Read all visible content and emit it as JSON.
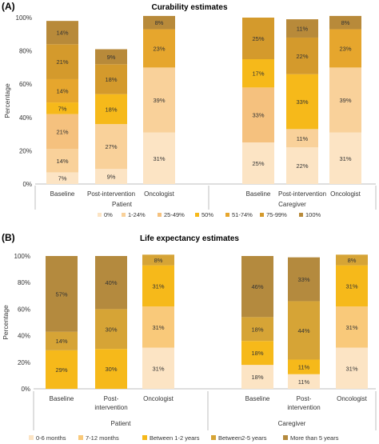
{
  "chart_data": [
    {
      "type": "bar",
      "stacked": true,
      "panel_label": "(A)",
      "title": "Curability estimates",
      "ylabel": "Percentage",
      "ylim": [
        0,
        100
      ],
      "yticks": [
        "0%",
        "20%",
        "40%",
        "60%",
        "80%",
        "100%"
      ],
      "groups": [
        "Patient",
        "Caregiver"
      ],
      "categories": [
        {
          "label": [
            "Baseline"
          ],
          "group": "Patient"
        },
        {
          "label": [
            "Post-intervention"
          ],
          "group": "Patient"
        },
        {
          "label": [
            "Oncologist"
          ],
          "group": "Patient"
        },
        {
          "label": [
            "Baseline"
          ],
          "group": "Caregiver"
        },
        {
          "label": [
            "Post-intervention"
          ],
          "group": "Caregiver"
        },
        {
          "label": [
            "Oncologist"
          ],
          "group": "Caregiver"
        }
      ],
      "series": [
        {
          "name": "0%",
          "color": "#fce4c4",
          "values": [
            7,
            9,
            31,
            25,
            22,
            31
          ],
          "labels": [
            "7%",
            "9%",
            "31%",
            "25%",
            "22%",
            "31%"
          ]
        },
        {
          "name": "1-24%",
          "color": "#f9d19a",
          "values": [
            14,
            27,
            39,
            0,
            11,
            39
          ],
          "labels": [
            "14%",
            "27%",
            "39%",
            "",
            "11%",
            "39%"
          ]
        },
        {
          "name": "25-49%",
          "color": "#f5c17e",
          "values": [
            21,
            0,
            0,
            33,
            0,
            0
          ],
          "labels": [
            "21%",
            "",
            "",
            "33%",
            "",
            ""
          ]
        },
        {
          "name": "50%",
          "color": "#f6b91a",
          "values": [
            7,
            18,
            0,
            17,
            33,
            0
          ],
          "labels": [
            "7%",
            "18%",
            "",
            "17%",
            "33%",
            ""
          ]
        },
        {
          "name": "51-74%",
          "color": "#e6a62d",
          "values": [
            14,
            0,
            23,
            0,
            0,
            23
          ],
          "labels": [
            "14%",
            "",
            "23%",
            "",
            "",
            "23%"
          ]
        },
        {
          "name": "75-99%",
          "color": "#d49a2c",
          "values": [
            21,
            18,
            0,
            25,
            22,
            0
          ],
          "labels": [
            "21%",
            "18%",
            "",
            "25%",
            "22%",
            ""
          ]
        },
        {
          "name": "100%",
          "color": "#b88a3a",
          "values": [
            14,
            9,
            8,
            0,
            11,
            8
          ],
          "labels": [
            "14%",
            "9%",
            "8%",
            "",
            "11%",
            "8%"
          ]
        }
      ],
      "legend": "bottom"
    },
    {
      "type": "bar",
      "stacked": true,
      "panel_label": "(B)",
      "title": "Life expectancy estimates",
      "ylabel": "Percentage",
      "ylim": [
        0,
        100
      ],
      "yticks": [
        "0%",
        "20%",
        "40%",
        "60%",
        "80%",
        "100%"
      ],
      "groups": [
        "Patient",
        "Caregiver"
      ],
      "categories": [
        {
          "label": [
            "Baseline"
          ],
          "group": "Patient"
        },
        {
          "label": [
            "Post-",
            "intervention"
          ],
          "group": "Patient"
        },
        {
          "label": [
            "Oncologist"
          ],
          "group": "Patient"
        },
        {
          "label": [
            "Baseline"
          ],
          "group": "Caregiver"
        },
        {
          "label": [
            "Post-",
            "intervention"
          ],
          "group": "Caregiver"
        },
        {
          "label": [
            "Oncologist"
          ],
          "group": "Caregiver"
        }
      ],
      "series": [
        {
          "name": "0-6 months",
          "color": "#fce4c4",
          "values": [
            0,
            0,
            31,
            18,
            11,
            31
          ],
          "labels": [
            "",
            "",
            "31%",
            "18%",
            "11%",
            "31%"
          ]
        },
        {
          "name": "7-12 months",
          "color": "#f9c97a",
          "values": [
            0,
            0,
            31,
            0,
            0,
            31
          ],
          "labels": [
            "",
            "",
            "31%",
            "",
            "",
            "31%"
          ]
        },
        {
          "name": "Between 1-2 years",
          "color": "#f6b91a",
          "values": [
            29,
            30,
            31,
            18,
            11,
            31
          ],
          "labels": [
            "29%",
            "30%",
            "31%",
            "18%",
            "11%",
            "31%"
          ]
        },
        {
          "name": "Between2-5 years",
          "color": "#d6a436",
          "values": [
            14,
            30,
            8,
            18,
            44,
            8
          ],
          "labels": [
            "14%",
            "30%",
            "8%",
            "18%",
            "44%",
            "8%"
          ]
        },
        {
          "name": "More than 5 years",
          "color": "#b48a3e",
          "values": [
            57,
            40,
            0,
            46,
            33,
            0
          ],
          "labels": [
            "57%",
            "40%",
            "",
            "46%",
            "33%",
            ""
          ]
        }
      ],
      "legend": "bottom"
    }
  ]
}
